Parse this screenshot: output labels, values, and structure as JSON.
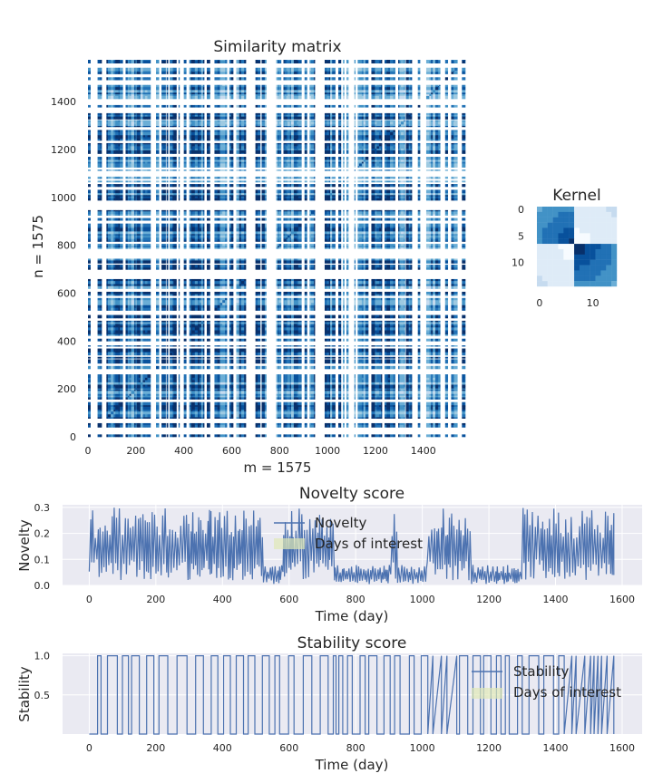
{
  "chart_data": [
    {
      "type": "heatmap",
      "title": "Similarity matrix",
      "xlabel": "m = 1575",
      "ylabel": "n = 1575",
      "xlim": [
        0,
        1575
      ],
      "ylim": [
        0,
        1575
      ],
      "xticks": [
        0,
        200,
        400,
        600,
        800,
        1000,
        1200,
        1400
      ],
      "yticks": [
        0,
        200,
        400,
        600,
        800,
        1000,
        1200,
        1400
      ],
      "colormap": "Blues",
      "size": 1575,
      "dense_bands": [
        [
          150,
          240
        ],
        [
          280,
          360
        ],
        [
          780,
          880
        ],
        [
          1200,
          1320
        ]
      ]
    },
    {
      "type": "heatmap",
      "title": "Kernel",
      "size": 15,
      "xticks": [
        0,
        10
      ],
      "yticks": [
        0,
        5,
        10
      ],
      "colormap": "Blues"
    },
    {
      "type": "line",
      "title": "Novelty score",
      "xlabel": "Time (day)",
      "ylabel": "Novelty",
      "xlim": [
        -80,
        1660
      ],
      "ylim": [
        0,
        0.31
      ],
      "xticks": [
        0,
        200,
        400,
        600,
        800,
        1000,
        1200,
        1400,
        1600
      ],
      "yticks": [
        0.0,
        0.1,
        0.2,
        0.3
      ],
      "grid": true,
      "legend_position": "top-center",
      "series": [
        {
          "name": "Novelty",
          "color": "#4c72b0"
        },
        {
          "name": "Days of interest",
          "color": "#dfe8b6"
        }
      ],
      "x_range": [
        0,
        1575
      ],
      "peak_max": 0.3,
      "low_segments": [
        [
          520,
          580
        ],
        [
          730,
          900
        ],
        [
          920,
          1010
        ],
        [
          1140,
          1290
        ]
      ]
    },
    {
      "type": "line",
      "title": "Stability score",
      "xlabel": "Time (day)",
      "ylabel": "Stability",
      "xlim": [
        -80,
        1660
      ],
      "ylim": [
        0,
        1.03
      ],
      "xticks": [
        0,
        200,
        400,
        600,
        800,
        1000,
        1200,
        1400,
        1600
      ],
      "yticks": [
        0.5,
        1.0
      ],
      "grid": true,
      "legend_position": "top-right",
      "series": [
        {
          "name": "Stability",
          "color": "#4c72b0"
        },
        {
          "name": "Days of interest",
          "color": "#dfe8b6"
        }
      ],
      "x_range": [
        0,
        1575
      ],
      "levels": [
        0,
        1
      ],
      "zero_segments": [
        [
          1000,
          1110
        ],
        [
          1440,
          1575
        ]
      ]
    }
  ]
}
